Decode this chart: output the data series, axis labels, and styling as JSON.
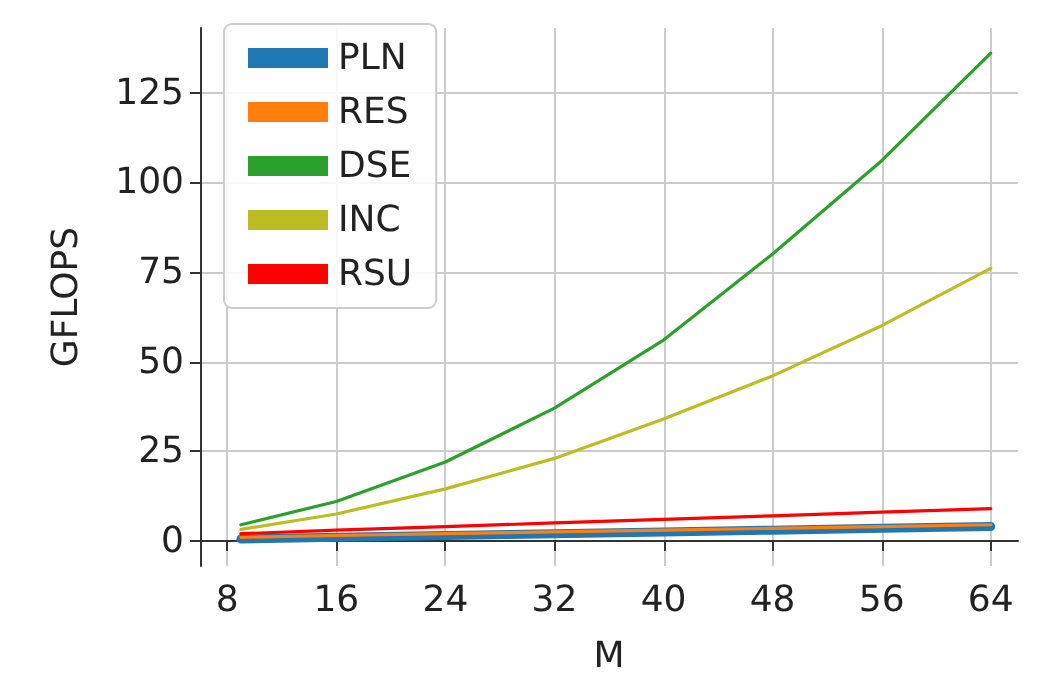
{
  "chart_data": {
    "type": "line",
    "xlabel": "M",
    "ylabel": "GFLOPS",
    "x": [
      9,
      16,
      24,
      32,
      40,
      48,
      56,
      64
    ],
    "series": [
      {
        "name": "PLN",
        "color": "#1f77b4",
        "values": [
          0.5,
          1,
          1.5,
          2,
          2.5,
          3,
          3.5,
          4
        ]
      },
      {
        "name": "RES",
        "color": "#ff7f0e",
        "values": [
          1,
          1.5,
          2,
          2.5,
          3,
          3.5,
          4,
          4.5
        ]
      },
      {
        "name": "DSE",
        "color": "#2ca02c",
        "values": [
          4.5,
          11,
          22,
          37,
          56,
          80,
          106,
          136
        ]
      },
      {
        "name": "INC",
        "color": "#bcbd22",
        "values": [
          3.2,
          7.5,
          14.5,
          23,
          34,
          46,
          60,
          76
        ]
      },
      {
        "name": "RSU",
        "color": "#ff0000",
        "values": [
          2,
          3,
          4,
          5,
          6,
          7,
          8,
          9
        ]
      }
    ],
    "xlim": [
      6,
      66
    ],
    "xticks": [
      8,
      16,
      24,
      32,
      40,
      48,
      56,
      64
    ],
    "ylim": [
      -7,
      143
    ],
    "yticks": [
      0,
      25,
      50,
      75,
      100,
      125
    ],
    "grid": true,
    "legend": "top left",
    "marker": "none",
    "line_style": "solid"
  }
}
